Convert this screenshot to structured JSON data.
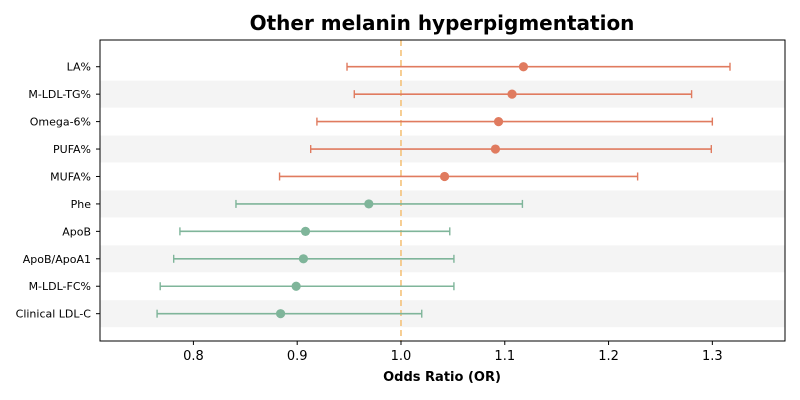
{
  "chart_data": {
    "type": "forest",
    "title": "Other melanin hyperpigmentation",
    "xlabel": "Odds Ratio (OR)",
    "ylabel": "",
    "xlim": [
      0.71,
      1.37
    ],
    "xticks": [
      "0.8",
      "0.9",
      "1.0",
      "1.1",
      "1.2",
      "1.3"
    ],
    "reference_line": 1.0,
    "row_band_color": "#f4f4f4",
    "colors": {
      "positive": "#e07b5f",
      "negative": "#7fb59a",
      "reference": "#f5c27a"
    },
    "rows": [
      {
        "label": "LA%",
        "or": 1.118,
        "lo": 0.948,
        "hi": 1.317,
        "group": "positive"
      },
      {
        "label": "M-LDL-TG%",
        "or": 1.107,
        "lo": 0.955,
        "hi": 1.28,
        "group": "positive"
      },
      {
        "label": "Omega-6%",
        "or": 1.094,
        "lo": 0.919,
        "hi": 1.3,
        "group": "positive"
      },
      {
        "label": "PUFA%",
        "or": 1.091,
        "lo": 0.913,
        "hi": 1.299,
        "group": "positive"
      },
      {
        "label": "MUFA%",
        "or": 1.042,
        "lo": 0.883,
        "hi": 1.228,
        "group": "positive"
      },
      {
        "label": "Phe",
        "or": 0.969,
        "lo": 0.841,
        "hi": 1.117,
        "group": "negative"
      },
      {
        "label": "ApoB",
        "or": 0.908,
        "lo": 0.787,
        "hi": 1.047,
        "group": "negative"
      },
      {
        "label": "ApoB/ApoA1",
        "or": 0.906,
        "lo": 0.781,
        "hi": 1.051,
        "group": "negative"
      },
      {
        "label": "M-LDL-FC%",
        "or": 0.899,
        "lo": 0.768,
        "hi": 1.051,
        "group": "negative"
      },
      {
        "label": "Clinical LDL-C",
        "or": 0.884,
        "lo": 0.765,
        "hi": 1.02,
        "group": "negative"
      }
    ]
  }
}
